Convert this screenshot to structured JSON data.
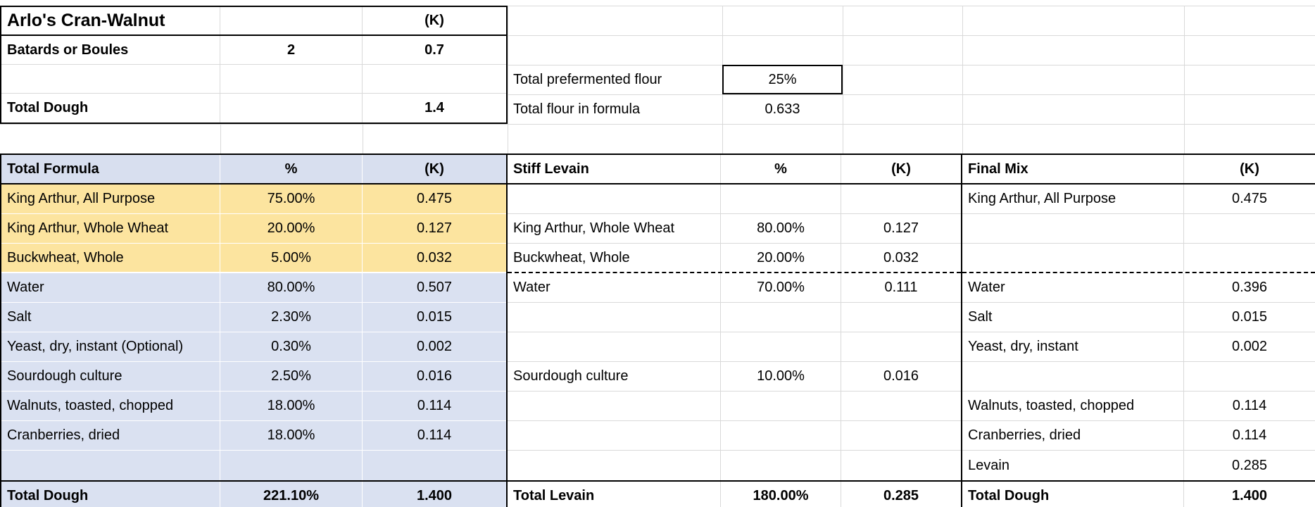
{
  "spreadsheet": {
    "title_block": {
      "title": "Arlo's Cran-Walnut",
      "unit": "(K)",
      "rows": [
        {
          "label": "Batards or Boules",
          "qty": "2",
          "kg": "0.7"
        },
        {
          "label": "",
          "qty": "",
          "kg": ""
        },
        {
          "label": "Total Dough",
          "qty": "",
          "kg": "1.4"
        }
      ]
    },
    "flour_summary": [
      {
        "label": "Total prefermented flour",
        "value": "25%"
      },
      {
        "label": "Total flour in formula",
        "value": "0.633"
      }
    ],
    "tables": [
      {
        "name": "Total Formula",
        "columns": [
          "Total Formula",
          "%",
          "(K)"
        ],
        "dashed_divider_after_row": 3,
        "rows": [
          {
            "name": "King Arthur, All Purpose",
            "pct": "75.00%",
            "kg": "0.475",
            "highlight": true
          },
          {
            "name": "King Arthur, Whole Wheat",
            "pct": "20.00%",
            "kg": "0.127",
            "highlight": true
          },
          {
            "name": "Buckwheat, Whole",
            "pct": "5.00%",
            "kg": "0.032",
            "highlight": true
          },
          {
            "name": "Water",
            "pct": "80.00%",
            "kg": "0.507"
          },
          {
            "name": "Salt",
            "pct": "2.30%",
            "kg": "0.015"
          },
          {
            "name": "Yeast, dry, instant (Optional)",
            "pct": "0.30%",
            "kg": "0.002"
          },
          {
            "name": "Sourdough culture",
            "pct": "2.50%",
            "kg": "0.016"
          },
          {
            "name": "Walnuts, toasted, chopped",
            "pct": "18.00%",
            "kg": "0.114"
          },
          {
            "name": "Cranberries, dried",
            "pct": "18.00%",
            "kg": "0.114"
          },
          {
            "name": "",
            "pct": "",
            "kg": ""
          }
        ],
        "total": {
          "name": "Total Dough",
          "pct": "221.10%",
          "kg": "1.400"
        }
      },
      {
        "name": "Stiff Levain",
        "columns": [
          "Stiff Levain",
          "%",
          "(K)"
        ],
        "dashed_divider_after_row": 3,
        "rows": [
          {
            "name": "",
            "pct": "",
            "kg": ""
          },
          {
            "name": "King Arthur, Whole Wheat",
            "pct": "80.00%",
            "kg": "0.127"
          },
          {
            "name": "Buckwheat, Whole",
            "pct": "20.00%",
            "kg": "0.032"
          },
          {
            "name": "Water",
            "pct": "70.00%",
            "kg": "0.111"
          },
          {
            "name": "",
            "pct": "",
            "kg": ""
          },
          {
            "name": "",
            "pct": "",
            "kg": ""
          },
          {
            "name": "Sourdough culture",
            "pct": "10.00%",
            "kg": "0.016"
          },
          {
            "name": "",
            "pct": "",
            "kg": ""
          },
          {
            "name": "",
            "pct": "",
            "kg": ""
          },
          {
            "name": "",
            "pct": "",
            "kg": ""
          }
        ],
        "total": {
          "name": "Total Levain",
          "pct": "180.00%",
          "kg": "0.285"
        }
      },
      {
        "name": "Final Mix",
        "columns": [
          "Final Mix",
          "(K)"
        ],
        "dashed_divider_after_row": 3,
        "rows": [
          {
            "name": "King Arthur, All Purpose",
            "kg": "0.475"
          },
          {
            "name": "",
            "kg": ""
          },
          {
            "name": "",
            "kg": ""
          },
          {
            "name": "Water",
            "kg": "0.396"
          },
          {
            "name": "Salt",
            "kg": "0.015"
          },
          {
            "name": "Yeast, dry, instant",
            "kg": "0.002"
          },
          {
            "name": "",
            "kg": ""
          },
          {
            "name": "Walnuts, toasted, chopped",
            "kg": "0.114"
          },
          {
            "name": "Cranberries, dried",
            "kg": "0.114"
          },
          {
            "name": "Levain",
            "kg": "0.285"
          }
        ],
        "total": {
          "name": "Total Dough",
          "kg": "1.400"
        }
      }
    ],
    "colors": {
      "flour_highlight": "#fce49f",
      "formula_shade": "#dae1f1",
      "header_shade": "#d8dfef",
      "gridline": "#d9d9d9"
    }
  }
}
